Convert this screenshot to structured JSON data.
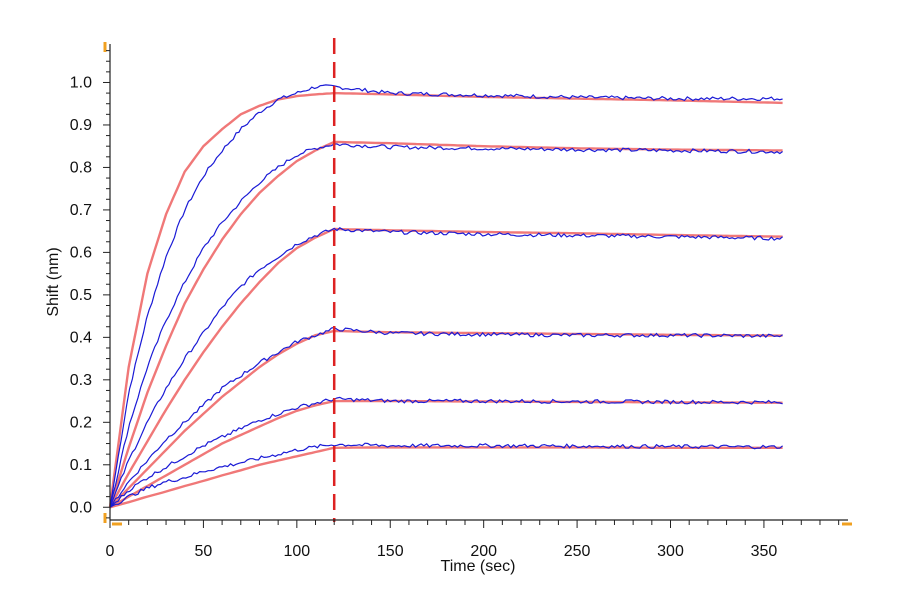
{
  "chart_data": {
    "type": "line",
    "title": "",
    "xlabel": "Time (sec)",
    "ylabel": "Shift (nm)",
    "xlim": [
      0,
      395
    ],
    "ylim": [
      -0.03,
      1.1
    ],
    "xticks": [
      0,
      50,
      100,
      150,
      200,
      250,
      300,
      350
    ],
    "xtick_labels": [
      "0",
      "50",
      "100",
      "150",
      "200",
      "250",
      "300",
      "350"
    ],
    "yticks": [
      0.0,
      0.1,
      0.2,
      0.3,
      0.4,
      0.5,
      0.6,
      0.7,
      0.8,
      0.9,
      1.0
    ],
    "ytick_labels": [
      "0.0",
      "0.1",
      "0.2",
      "0.3",
      "0.4",
      "0.5",
      "0.6",
      "0.7",
      "0.8",
      "0.9",
      "1.0"
    ],
    "grid": false,
    "legend": "none",
    "dissociation_start": 120,
    "colors": {
      "measured": "#1a1ad6",
      "fit": "#f07878",
      "marker": "#dd2222",
      "axis_accent": "#f0a020"
    },
    "measured": [
      {
        "x": [
          0,
          10,
          20,
          30,
          40,
          50,
          60,
          70,
          80,
          90,
          100,
          110,
          120,
          150,
          200,
          250,
          300,
          360
        ],
        "y": [
          0,
          0.27,
          0.45,
          0.59,
          0.7,
          0.78,
          0.84,
          0.89,
          0.93,
          0.96,
          0.975,
          0.99,
          0.99,
          0.975,
          0.97,
          0.965,
          0.962,
          0.962
        ]
      },
      {
        "x": [
          0,
          10,
          20,
          30,
          40,
          50,
          60,
          70,
          80,
          90,
          100,
          110,
          120,
          150,
          200,
          250,
          300,
          360
        ],
        "y": [
          0,
          0.19,
          0.33,
          0.44,
          0.53,
          0.61,
          0.67,
          0.72,
          0.765,
          0.8,
          0.83,
          0.845,
          0.855,
          0.848,
          0.845,
          0.842,
          0.84,
          0.837
        ]
      },
      {
        "x": [
          0,
          10,
          20,
          30,
          40,
          50,
          60,
          70,
          80,
          90,
          100,
          110,
          120,
          150,
          200,
          250,
          300,
          360
        ],
        "y": [
          0,
          0.11,
          0.2,
          0.28,
          0.35,
          0.41,
          0.47,
          0.52,
          0.56,
          0.59,
          0.62,
          0.64,
          0.655,
          0.648,
          0.643,
          0.64,
          0.637,
          0.633
        ]
      },
      {
        "x": [
          0,
          10,
          20,
          30,
          40,
          50,
          60,
          70,
          80,
          90,
          100,
          110,
          120,
          150,
          200,
          250,
          300,
          360
        ],
        "y": [
          0,
          0.06,
          0.11,
          0.16,
          0.2,
          0.24,
          0.28,
          0.31,
          0.34,
          0.365,
          0.39,
          0.405,
          0.42,
          0.41,
          0.407,
          0.405,
          0.405,
          0.403
        ]
      },
      {
        "x": [
          0,
          10,
          20,
          30,
          40,
          50,
          60,
          70,
          80,
          90,
          100,
          110,
          120,
          150,
          200,
          250,
          300,
          360
        ],
        "y": [
          0,
          0.04,
          0.07,
          0.095,
          0.12,
          0.145,
          0.165,
          0.185,
          0.205,
          0.22,
          0.235,
          0.245,
          0.255,
          0.25,
          0.25,
          0.249,
          0.248,
          0.247
        ]
      },
      {
        "x": [
          0,
          10,
          20,
          30,
          40,
          50,
          60,
          70,
          80,
          90,
          100,
          110,
          120,
          150,
          200,
          250,
          300,
          360
        ],
        "y": [
          0,
          0.025,
          0.045,
          0.06,
          0.07,
          0.085,
          0.095,
          0.105,
          0.115,
          0.125,
          0.135,
          0.142,
          0.148,
          0.145,
          0.145,
          0.144,
          0.143,
          0.142
        ]
      }
    ],
    "fits": [
      {
        "x": [
          0,
          10,
          20,
          30,
          40,
          50,
          60,
          70,
          80,
          90,
          100,
          110,
          120,
          150,
          200,
          250,
          300,
          360
        ],
        "y": [
          0,
          0.33,
          0.55,
          0.69,
          0.79,
          0.85,
          0.89,
          0.925,
          0.945,
          0.96,
          0.968,
          0.972,
          0.975,
          0.972,
          0.966,
          0.962,
          0.958,
          0.952
        ]
      },
      {
        "x": [
          0,
          10,
          20,
          30,
          40,
          50,
          60,
          70,
          80,
          90,
          100,
          110,
          120,
          150,
          200,
          250,
          300,
          360
        ],
        "y": [
          0,
          0.14,
          0.27,
          0.38,
          0.48,
          0.56,
          0.63,
          0.69,
          0.74,
          0.78,
          0.815,
          0.84,
          0.86,
          0.857,
          0.85,
          0.845,
          0.842,
          0.84
        ]
      },
      {
        "x": [
          0,
          10,
          20,
          30,
          40,
          50,
          60,
          70,
          80,
          90,
          100,
          110,
          120,
          150,
          200,
          250,
          300,
          360
        ],
        "y": [
          0,
          0.08,
          0.155,
          0.23,
          0.3,
          0.365,
          0.425,
          0.48,
          0.53,
          0.575,
          0.61,
          0.635,
          0.655,
          0.652,
          0.648,
          0.645,
          0.641,
          0.637
        ]
      },
      {
        "x": [
          0,
          10,
          20,
          30,
          40,
          50,
          60,
          70,
          80,
          90,
          100,
          110,
          120,
          150,
          200,
          250,
          300,
          360
        ],
        "y": [
          0,
          0.045,
          0.09,
          0.135,
          0.18,
          0.22,
          0.26,
          0.295,
          0.33,
          0.36,
          0.385,
          0.405,
          0.415,
          0.412,
          0.41,
          0.408,
          0.406,
          0.404
        ]
      },
      {
        "x": [
          0,
          10,
          20,
          30,
          40,
          50,
          60,
          70,
          80,
          90,
          100,
          110,
          120,
          150,
          200,
          250,
          300,
          360
        ],
        "y": [
          0,
          0.025,
          0.05,
          0.075,
          0.1,
          0.125,
          0.15,
          0.17,
          0.19,
          0.21,
          0.227,
          0.24,
          0.25,
          0.25,
          0.249,
          0.248,
          0.247,
          0.246
        ]
      },
      {
        "x": [
          0,
          10,
          20,
          30,
          40,
          50,
          60,
          70,
          80,
          90,
          100,
          110,
          120,
          150,
          200,
          250,
          300,
          360
        ],
        "y": [
          0,
          0.012,
          0.025,
          0.037,
          0.05,
          0.062,
          0.075,
          0.087,
          0.1,
          0.11,
          0.12,
          0.13,
          0.14,
          0.141,
          0.141,
          0.141,
          0.14,
          0.14
        ]
      }
    ]
  }
}
